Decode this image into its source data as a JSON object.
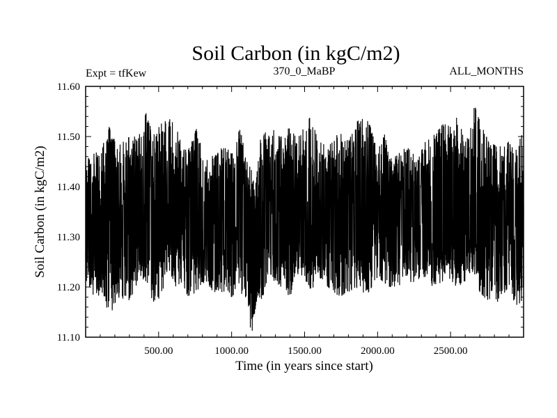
{
  "chart_data": {
    "type": "line",
    "title": "Soil Carbon (in kgC/m2)",
    "subtitle_left": "Expt = tfKew",
    "subtitle_center": "370_0_MaBP",
    "subtitle_right": "ALL_MONTHS",
    "xlabel": "Time (in years since start)",
    "ylabel": "Soil Carbon (in kgC/m2)",
    "xlim": [
      0,
      3000
    ],
    "ylim": [
      11.1,
      11.6
    ],
    "x_ticks": [
      500,
      1000,
      1500,
      2000,
      2500
    ],
    "x_tick_labels": [
      "500.00",
      "1000.00",
      "1500.00",
      "2000.00",
      "2500.00"
    ],
    "y_ticks": [
      11.1,
      11.2,
      11.3,
      11.4,
      11.5,
      11.6
    ],
    "y_tick_labels": [
      "11.10",
      "11.20",
      "11.30",
      "11.40",
      "11.50",
      "11.60"
    ],
    "grid": false,
    "line_color": "#000000",
    "series": [
      {
        "x_start": 0,
        "x_end": 3000,
        "points": 3000,
        "envelope_years": [
          0,
          100,
          160,
          220,
          300,
          370,
          420,
          460,
          520,
          560,
          620,
          660,
          700,
          760,
          800,
          880,
          940,
          1000,
          1060,
          1100,
          1140,
          1160,
          1200,
          1260,
          1340,
          1400,
          1460,
          1540,
          1600,
          1660,
          1740,
          1800,
          1860,
          1900,
          1940,
          2000,
          2040,
          2080,
          2120,
          2200,
          2260,
          2320,
          2380,
          2440,
          2480,
          2540,
          2600,
          2640,
          2660,
          2700,
          2760,
          2820,
          2900,
          2960,
          3000
        ],
        "envelope_max": [
          11.45,
          11.48,
          11.52,
          11.48,
          11.5,
          11.52,
          11.55,
          11.5,
          11.53,
          11.54,
          11.52,
          11.48,
          11.47,
          11.52,
          11.47,
          11.46,
          11.48,
          11.47,
          11.52,
          11.46,
          11.43,
          11.4,
          11.5,
          11.52,
          11.5,
          11.52,
          11.5,
          11.54,
          11.49,
          11.48,
          11.51,
          11.49,
          11.53,
          11.54,
          11.53,
          11.47,
          11.52,
          11.46,
          11.46,
          11.48,
          11.46,
          11.49,
          11.5,
          11.53,
          11.52,
          11.54,
          11.5,
          11.52,
          11.57,
          11.53,
          11.49,
          11.48,
          11.49,
          11.47,
          11.54
        ],
        "envelope_min": [
          11.2,
          11.17,
          11.15,
          11.16,
          11.17,
          11.22,
          11.21,
          11.17,
          11.18,
          11.23,
          11.2,
          11.21,
          11.18,
          11.19,
          11.21,
          11.19,
          11.19,
          11.18,
          11.2,
          11.14,
          11.11,
          11.15,
          11.17,
          11.22,
          11.2,
          11.18,
          11.23,
          11.19,
          11.22,
          11.2,
          11.18,
          11.19,
          11.2,
          11.18,
          11.19,
          11.22,
          11.21,
          11.2,
          11.2,
          11.21,
          11.21,
          11.22,
          11.2,
          11.21,
          11.22,
          11.2,
          11.21,
          11.23,
          11.23,
          11.19,
          11.17,
          11.17,
          11.2,
          11.15,
          11.18
        ],
        "mean": 11.34
      }
    ]
  }
}
